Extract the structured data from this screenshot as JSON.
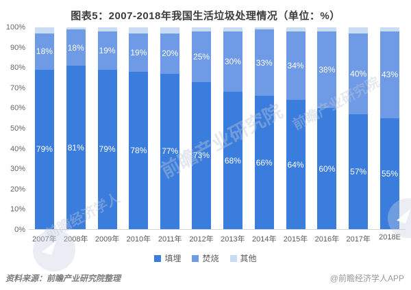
{
  "title": "图表5：2007-2018年我国生活垃圾处理情况（单位：%）",
  "footer": {
    "source_note": "资料来源：前瞻产业研究院整理",
    "brand": "@前瞻经济学人APP"
  },
  "watermark": {
    "text": "前瞻产业研究院",
    "text2": "前瞻经济学人"
  },
  "colors": {
    "landfill": "#3b7ddd",
    "incineration": "#6e9ae6",
    "other": "#c8dcf4",
    "axis_text": "#666666",
    "title_text": "#3c3c3c"
  },
  "chart_data": {
    "type": "bar",
    "stacked": true,
    "title": "图表5：2007-2018年我国生活垃圾处理情况（单位：%）",
    "categories": [
      "2007年",
      "2008年",
      "2009年",
      "2010年",
      "2011年",
      "2012年",
      "2013年",
      "2014年",
      "2015年",
      "2016年",
      "2017年",
      "2018E"
    ],
    "series": [
      {
        "key": "landfill",
        "name": "填埋",
        "color": "#3b7ddd",
        "show_labels": true,
        "values": [
          79,
          81,
          79,
          78,
          77,
          73,
          68,
          66,
          64,
          60,
          57,
          55
        ]
      },
      {
        "key": "incineration",
        "name": "焚烧",
        "color": "#6e9ae6",
        "show_labels": true,
        "values": [
          18,
          18,
          19,
          19,
          20,
          25,
          30,
          33,
          34,
          38,
          40,
          43
        ]
      },
      {
        "key": "other",
        "name": "其他",
        "color": "#c8dcf4",
        "show_labels": false,
        "values": [
          3,
          1,
          2,
          3,
          3,
          2,
          2,
          1,
          2,
          2,
          3,
          2
        ]
      }
    ],
    "xlabel": "",
    "ylabel": "",
    "ylim": [
      0,
      100
    ],
    "yticks": [
      "0%",
      "10%",
      "20%",
      "30%",
      "40%",
      "50%",
      "60%",
      "70%",
      "80%",
      "90%",
      "100%"
    ],
    "grid": false,
    "legend_position": "bottom",
    "value_suffix": "%"
  }
}
